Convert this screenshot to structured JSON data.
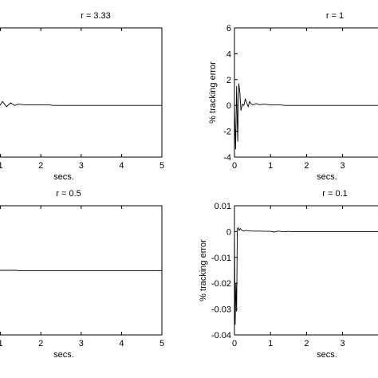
{
  "chart_data": [
    {
      "type": "line",
      "title": "r = 3.33",
      "xlabel": "secs.",
      "ylabel": "",
      "xlim": [
        0,
        5
      ],
      "ylim": [
        -4,
        6
      ],
      "xticks": [
        "1",
        "2",
        "3",
        "4",
        "5"
      ],
      "yticks": [],
      "series": [
        {
          "x": [
            0.0,
            0.1,
            0.2,
            0.28,
            0.36,
            0.45,
            0.55,
            0.62,
            0.7,
            0.78,
            0.86,
            0.95,
            1.05,
            1.15,
            1.25,
            1.35,
            1.45,
            1.6,
            2.2,
            2.3,
            5.0
          ],
          "y": [
            0.5,
            0.55,
            0.7,
            0.45,
            0.6,
            0.3,
            0.55,
            0.2,
            0.45,
            0.05,
            0.35,
            -0.15,
            0.3,
            -0.1,
            0.2,
            0.0,
            0.1,
            0.05,
            0.05,
            0.0,
            0.0
          ]
        }
      ]
    },
    {
      "type": "line",
      "title": "r = 1",
      "xlabel": "secs.",
      "ylabel": "% tracking error",
      "xlim": [
        0,
        5
      ],
      "ylim": [
        -4,
        6
      ],
      "xticks": [
        "0",
        "1",
        "2",
        "3"
      ],
      "yticks": [
        "-4",
        "-2",
        "0",
        "2",
        "4",
        "6"
      ],
      "series": [
        {
          "x": [
            0.0,
            0.03,
            0.06,
            0.09,
            0.12,
            0.15,
            0.18,
            0.22,
            0.26,
            0.3,
            0.34,
            0.38,
            0.42,
            0.47,
            0.52,
            0.6,
            0.7,
            0.8,
            1.0,
            1.2,
            1.35,
            1.4,
            5.0
          ],
          "y": [
            0.0,
            -3.4,
            1.5,
            -2.8,
            1.7,
            1.0,
            -0.4,
            0.1,
            0.0,
            0.5,
            0.2,
            -0.1,
            0.3,
            0.1,
            0.05,
            0.15,
            0.05,
            0.1,
            0.05,
            0.05,
            0.02,
            0.0,
            0.0
          ]
        }
      ]
    },
    {
      "type": "line",
      "title": "r = 0.5",
      "xlabel": "secs.",
      "ylabel": "",
      "xlim": [
        0,
        5
      ],
      "ylim": [
        -1,
        1
      ],
      "xticks": [
        "1",
        "2",
        "3",
        "4",
        "5"
      ],
      "yticks": [],
      "series": [
        {
          "x": [
            0.0,
            1.4,
            1.45,
            5.0
          ],
          "y": [
            0.0,
            0.0,
            -0.005,
            -0.005
          ]
        }
      ]
    },
    {
      "type": "line",
      "title": "r = 0.1",
      "xlabel": "secs.",
      "ylabel": "% tracking error",
      "xlim": [
        0,
        5
      ],
      "ylim": [
        -0.04,
        0.01
      ],
      "xticks": [
        "0",
        "1",
        "2",
        "3"
      ],
      "yticks": [
        "-0.04",
        "-0.03",
        "-0.02",
        "-0.01",
        "0",
        "0.01"
      ],
      "series": [
        {
          "x": [
            0.0,
            0.02,
            0.04,
            0.06,
            0.08,
            0.1,
            0.13,
            0.16,
            0.2,
            0.25,
            0.3,
            0.4,
            0.5,
            0.7,
            0.9,
            1.0,
            1.1,
            1.2,
            1.4,
            1.5,
            1.55,
            5.0
          ],
          "y": [
            0.0,
            -0.036,
            -0.02,
            -0.031,
            0.001,
            0.0015,
            0.0005,
            0.0012,
            0.0006,
            0.0002,
            0.0005,
            0.0003,
            0.0002,
            0.0002,
            0.0001,
            0.0001,
            -0.0002,
            0.0002,
            -0.0001,
            0.0001,
            0.0,
            0.0
          ]
        }
      ]
    }
  ]
}
